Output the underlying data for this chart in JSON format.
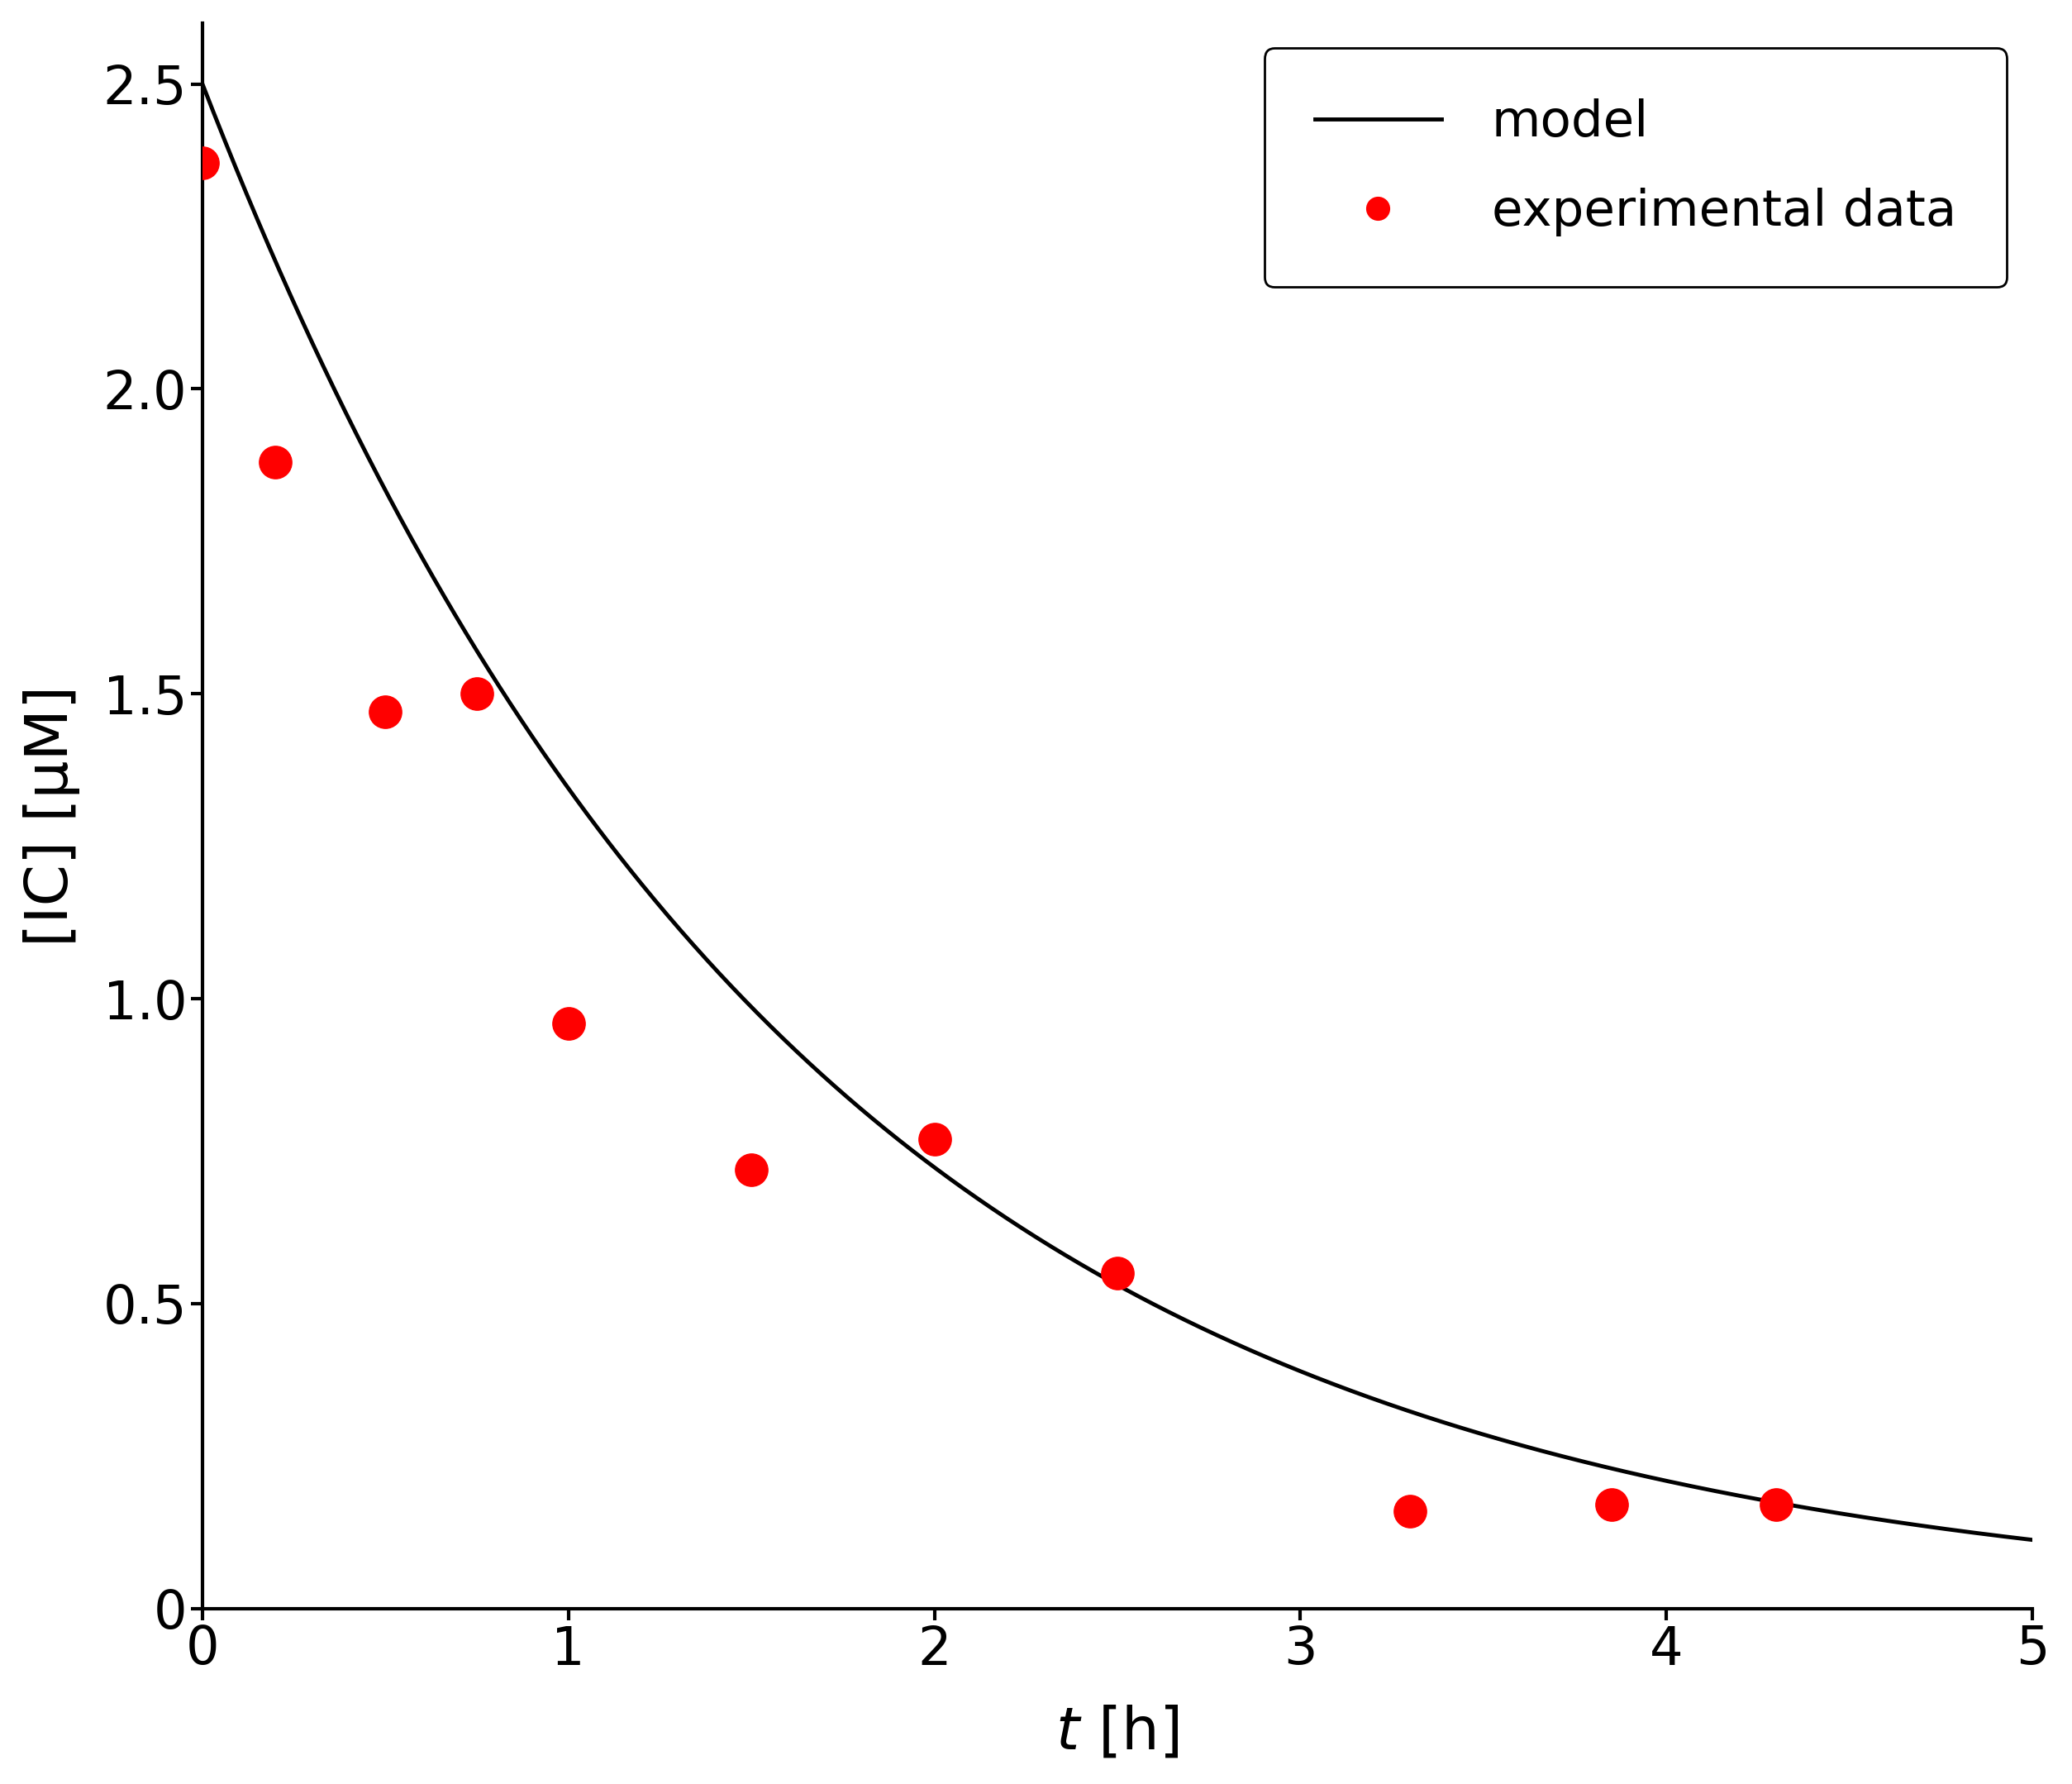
{
  "exp_x": [
    0.0,
    0.2,
    0.5,
    0.75,
    1.0,
    1.5,
    2.0,
    2.5,
    3.3,
    3.85,
    4.3
  ],
  "exp_y": [
    2.37,
    1.88,
    1.47,
    1.5,
    0.96,
    0.72,
    0.77,
    0.55,
    0.16,
    0.17,
    0.17
  ],
  "model_C0": 2.5,
  "model_k": 0.62,
  "xlim": [
    0,
    5
  ],
  "ylim": [
    0,
    2.6
  ],
  "xticks": [
    0,
    1,
    2,
    3,
    4,
    5
  ],
  "ytick_values": [
    0,
    0.5,
    1.0,
    1.5,
    2.0,
    2.5
  ],
  "ytick_labels": [
    "0",
    "0.5",
    "1.0",
    "1.5",
    "2.0",
    "2.5"
  ],
  "xlabel_units": " [h]",
  "ylabel_text": "[IC] [μM]",
  "legend_model": "model",
  "legend_exp": "experimental data",
  "line_color": "#000000",
  "dot_color": "#ff0000",
  "dot_size": 800,
  "line_width": 3.5,
  "background_color": "#ffffff",
  "axes_background": "#ffffff",
  "label_fontsize": 52,
  "tick_fontsize": 46,
  "legend_fontsize": 44,
  "spine_linewidth": 3.0
}
